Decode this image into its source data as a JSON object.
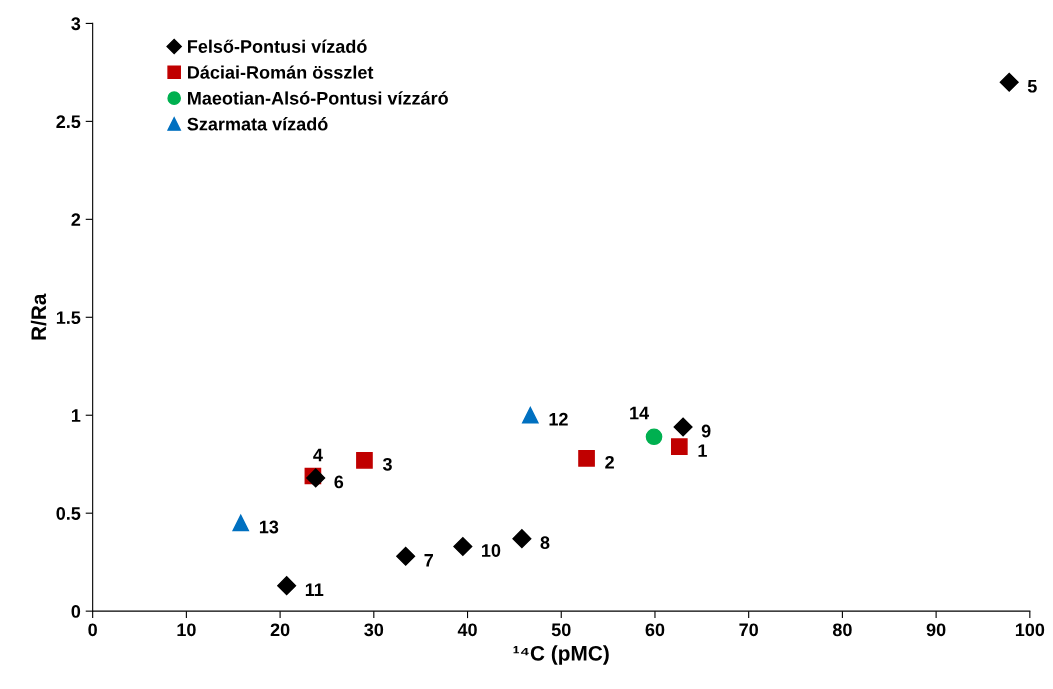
{
  "chart_data": {
    "type": "scatter",
    "xlabel": "¹⁴C (pMC)",
    "ylabel": "R/Ra",
    "xlim": [
      0,
      100
    ],
    "ylim": [
      0,
      3
    ],
    "xticks": [
      0,
      10,
      20,
      30,
      40,
      50,
      60,
      70,
      80,
      90,
      100
    ],
    "yticks": [
      0,
      0.5,
      1,
      1.5,
      2,
      2.5,
      3
    ],
    "grid": false,
    "legend": "top left",
    "series": [
      {
        "name": "Felső-Pontusi vízadó",
        "color": "#000000",
        "marker": "diamond",
        "x": [
          97.8,
          63.0,
          45.8,
          39.5,
          33.4,
          23.8,
          20.7
        ],
        "values": [
          2.7,
          0.94,
          0.37,
          0.33,
          0.28,
          0.68,
          0.13
        ]
      },
      {
        "name": "Dáciai-Román összlet",
        "color": "#c00000",
        "marker": "square",
        "x": [
          62.6,
          52.7,
          29.0,
          23.5
        ],
        "values": [
          0.84,
          0.78,
          0.77,
          0.69
        ]
      },
      {
        "name": "Maeotian-Alsó-Pontusi vízzáró",
        "color": "#00b050",
        "marker": "circle",
        "x": [
          59.9
        ],
        "values": [
          0.89
        ]
      },
      {
        "name": "Szarmata vízadó",
        "color": "#0070c0",
        "marker": "triangle",
        "x": [
          46.7,
          15.8
        ],
        "values": [
          1.0,
          0.45
        ]
      }
    ],
    "annotations": [
      {
        "text": "1",
        "x": 62.6,
        "y": 0.84
      },
      {
        "text": "2",
        "x": 52.7,
        "y": 0.78
      },
      {
        "text": "3",
        "x": 29.0,
        "y": 0.77
      },
      {
        "text": "4",
        "x": 23.5,
        "y": 0.69
      },
      {
        "text": "5",
        "x": 97.8,
        "y": 2.7
      },
      {
        "text": "6",
        "x": 23.8,
        "y": 0.68
      },
      {
        "text": "7",
        "x": 33.4,
        "y": 0.28
      },
      {
        "text": "8",
        "x": 45.8,
        "y": 0.37
      },
      {
        "text": "9",
        "x": 63.0,
        "y": 0.94
      },
      {
        "text": "10",
        "x": 39.5,
        "y": 0.33
      },
      {
        "text": "11",
        "x": 20.7,
        "y": 0.13
      },
      {
        "text": "12",
        "x": 46.7,
        "y": 1.0
      },
      {
        "text": "13",
        "x": 15.8,
        "y": 0.45
      },
      {
        "text": "14",
        "x": 59.9,
        "y": 0.89
      }
    ]
  }
}
